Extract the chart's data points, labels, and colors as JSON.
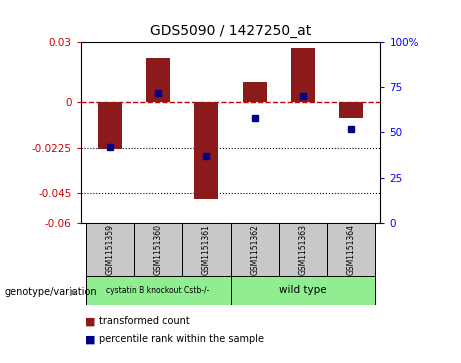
{
  "title": "GDS5090 / 1427250_at",
  "samples": [
    "GSM1151359",
    "GSM1151360",
    "GSM1151361",
    "GSM1151362",
    "GSM1151363",
    "GSM1151364"
  ],
  "red_bars": [
    -0.023,
    0.022,
    -0.048,
    0.01,
    0.027,
    -0.008
  ],
  "blue_dots": [
    42,
    72,
    37,
    58,
    70,
    52
  ],
  "ylim_left": [
    -0.06,
    0.03
  ],
  "ylim_right": [
    0,
    100
  ],
  "yticks_left": [
    -0.06,
    -0.045,
    -0.0225,
    0,
    0.03
  ],
  "ytick_labels_left": [
    "-0.06",
    "-0.045",
    "-0.0225",
    "0",
    "0.03"
  ],
  "yticks_right": [
    0,
    25,
    50,
    75,
    100
  ],
  "ytick_labels_right": [
    "0",
    "25",
    "50",
    "75",
    "100%"
  ],
  "hlines_dotted": [
    -0.0225,
    -0.045
  ],
  "group1_label": "cystatin B knockout Cstb-/-",
  "group2_label": "wild type",
  "group1_indices": [
    0,
    1,
    2
  ],
  "group2_indices": [
    3,
    4,
    5
  ],
  "genotype_label": "genotype/variation",
  "legend_red": "transformed count",
  "legend_blue": "percentile rank within the sample",
  "bar_color": "#8B1A1A",
  "dot_color": "#00008B",
  "group1_color": "#90EE90",
  "group2_color": "#90EE90",
  "dashed_line_color": "#CC0000",
  "bg_color": "#FFFFFF",
  "sample_box_color": "#C8C8C8",
  "bar_width": 0.5
}
